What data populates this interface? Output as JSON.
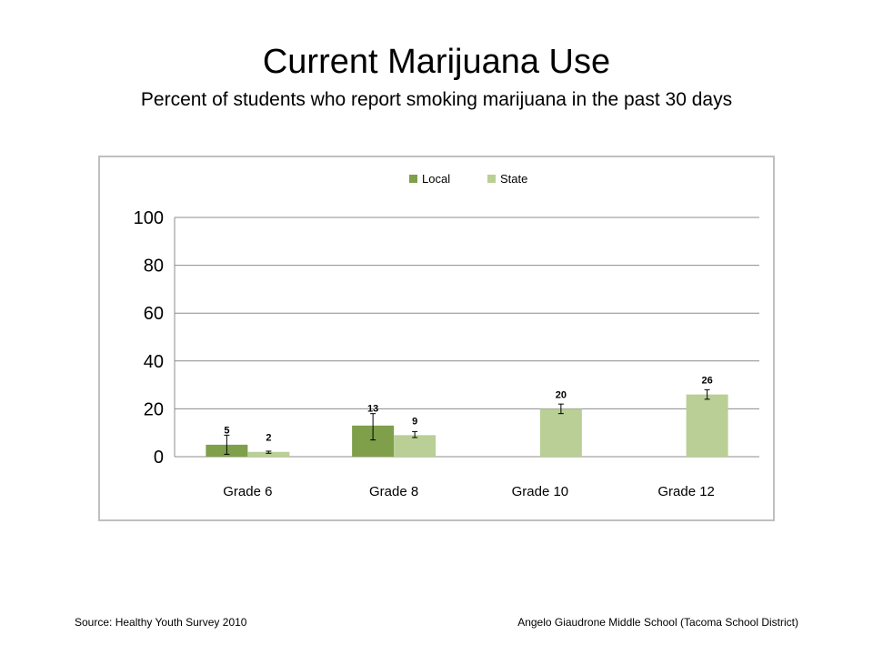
{
  "slide": {
    "title": "Current Marijuana Use",
    "subtitle": "Percent of students who report smoking marijuana in the past 30 days",
    "source": "Source: Healthy Youth Survey 2010",
    "school": "Angelo Giaudrone Middle School (Tacoma School District)"
  },
  "chart_data": {
    "type": "bar",
    "title": "",
    "xlabel": "",
    "ylabel": "",
    "ylim": [
      0,
      100
    ],
    "yticks": [
      0,
      20,
      40,
      60,
      80,
      100
    ],
    "grid": true,
    "legend_position": "top-center",
    "categories": [
      "Grade 6",
      "Grade 8",
      "Grade 10",
      "Grade 12"
    ],
    "series": [
      {
        "name": "Local",
        "color": "#7f9f4b",
        "values": [
          5,
          13,
          null,
          null
        ],
        "labels": [
          "5",
          "13",
          "",
          ""
        ],
        "error_low": [
          1,
          7,
          null,
          null
        ],
        "error_high": [
          9,
          18,
          null,
          null
        ]
      },
      {
        "name": "State",
        "color": "#b9cf95",
        "values": [
          2,
          9,
          20,
          26
        ],
        "labels": [
          "2",
          "9",
          "20",
          "26"
        ],
        "error_low": [
          1.4,
          8,
          18,
          24
        ],
        "error_high": [
          2.3,
          10.5,
          22,
          28
        ]
      }
    ]
  }
}
